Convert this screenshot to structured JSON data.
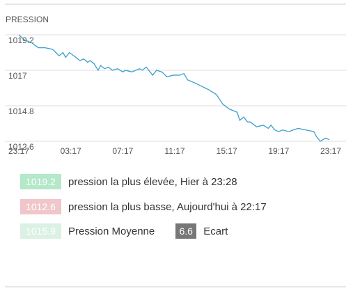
{
  "chart_data": {
    "type": "line",
    "title": "PRESSION",
    "x": [
      0,
      0.4,
      1.0,
      1.5,
      2.0,
      2.6,
      3.1,
      3.4,
      3.6,
      3.9,
      4.4,
      4.7,
      5.0,
      5.3,
      5.5,
      5.8,
      6.1,
      6.3,
      6.6,
      6.9,
      7.2,
      7.6,
      8.0,
      8.2,
      8.7,
      9.0,
      9.3,
      9.5,
      9.8,
      10.1,
      10.3,
      10.6,
      11.0,
      11.4,
      11.9,
      12.4,
      12.7,
      13.0,
      13.6,
      14.1,
      14.6,
      15.2,
      15.7,
      16.2,
      16.8,
      17.0,
      17.3,
      17.6,
      17.8,
      18.3,
      18.8,
      19.2,
      19.4,
      19.7,
      20.0,
      20.3,
      20.8,
      21.1,
      21.5,
      22.1,
      22.7,
      22.9,
      23.2,
      23.6,
      23.9
    ],
    "series": [
      {
        "color": "#3a9fcc",
        "values": [
          1019.2,
          1018.9,
          1018.7,
          1018.4,
          1018.4,
          1018.3,
          1017.9,
          1018.1,
          1017.8,
          1018.1,
          1017.8,
          1017.6,
          1017.7,
          1017.5,
          1017.6,
          1017.4,
          1017.0,
          1017.3,
          1017.1,
          1017.2,
          1017.0,
          1017.1,
          1016.9,
          1017.0,
          1016.9,
          1017.0,
          1017.1,
          1017.0,
          1017.2,
          1016.9,
          1016.7,
          1017.0,
          1016.9,
          1016.6,
          1016.7,
          1016.7,
          1016.8,
          1016.4,
          1016.2,
          1016.0,
          1015.8,
          1015.5,
          1014.9,
          1014.6,
          1014.4,
          1013.9,
          1014.1,
          1013.8,
          1013.8,
          1013.5,
          1013.6,
          1013.4,
          1013.6,
          1013.3,
          1013.2,
          1013.3,
          1013.2,
          1013.3,
          1013.4,
          1013.3,
          1013.2,
          1012.9,
          1012.6,
          1012.8,
          1012.7
        ]
      }
    ],
    "xlim": [
      0,
      24
    ],
    "xticks": [
      {
        "value": 0,
        "label": "23:17"
      },
      {
        "value": 4,
        "label": "03:17"
      },
      {
        "value": 8,
        "label": "07:17"
      },
      {
        "value": 12,
        "label": "11:17"
      },
      {
        "value": 16,
        "label": "15:17"
      },
      {
        "value": 20,
        "label": "19:17"
      },
      {
        "value": 24,
        "label": "23:17"
      }
    ],
    "ylim": [
      1012.6,
      1019.2
    ],
    "yticks": [
      1012.6,
      1014.8,
      1017,
      1019.2
    ],
    "grid": true
  },
  "stats": [
    {
      "value": 1019.2,
      "label": "pression la plus élevée, Hier à 23:28",
      "color": "#b3e8c8"
    },
    {
      "value": 1012.6,
      "label": "pression la plus basse, Aujourd'hui à 22:17",
      "color": "#f0c6ca"
    },
    {
      "value": 1015.9,
      "label": "Pression Moyenne",
      "color": "#dcf1e5"
    }
  ],
  "spread": {
    "value": 6.6,
    "label": "Ecart",
    "color": "#777777"
  }
}
